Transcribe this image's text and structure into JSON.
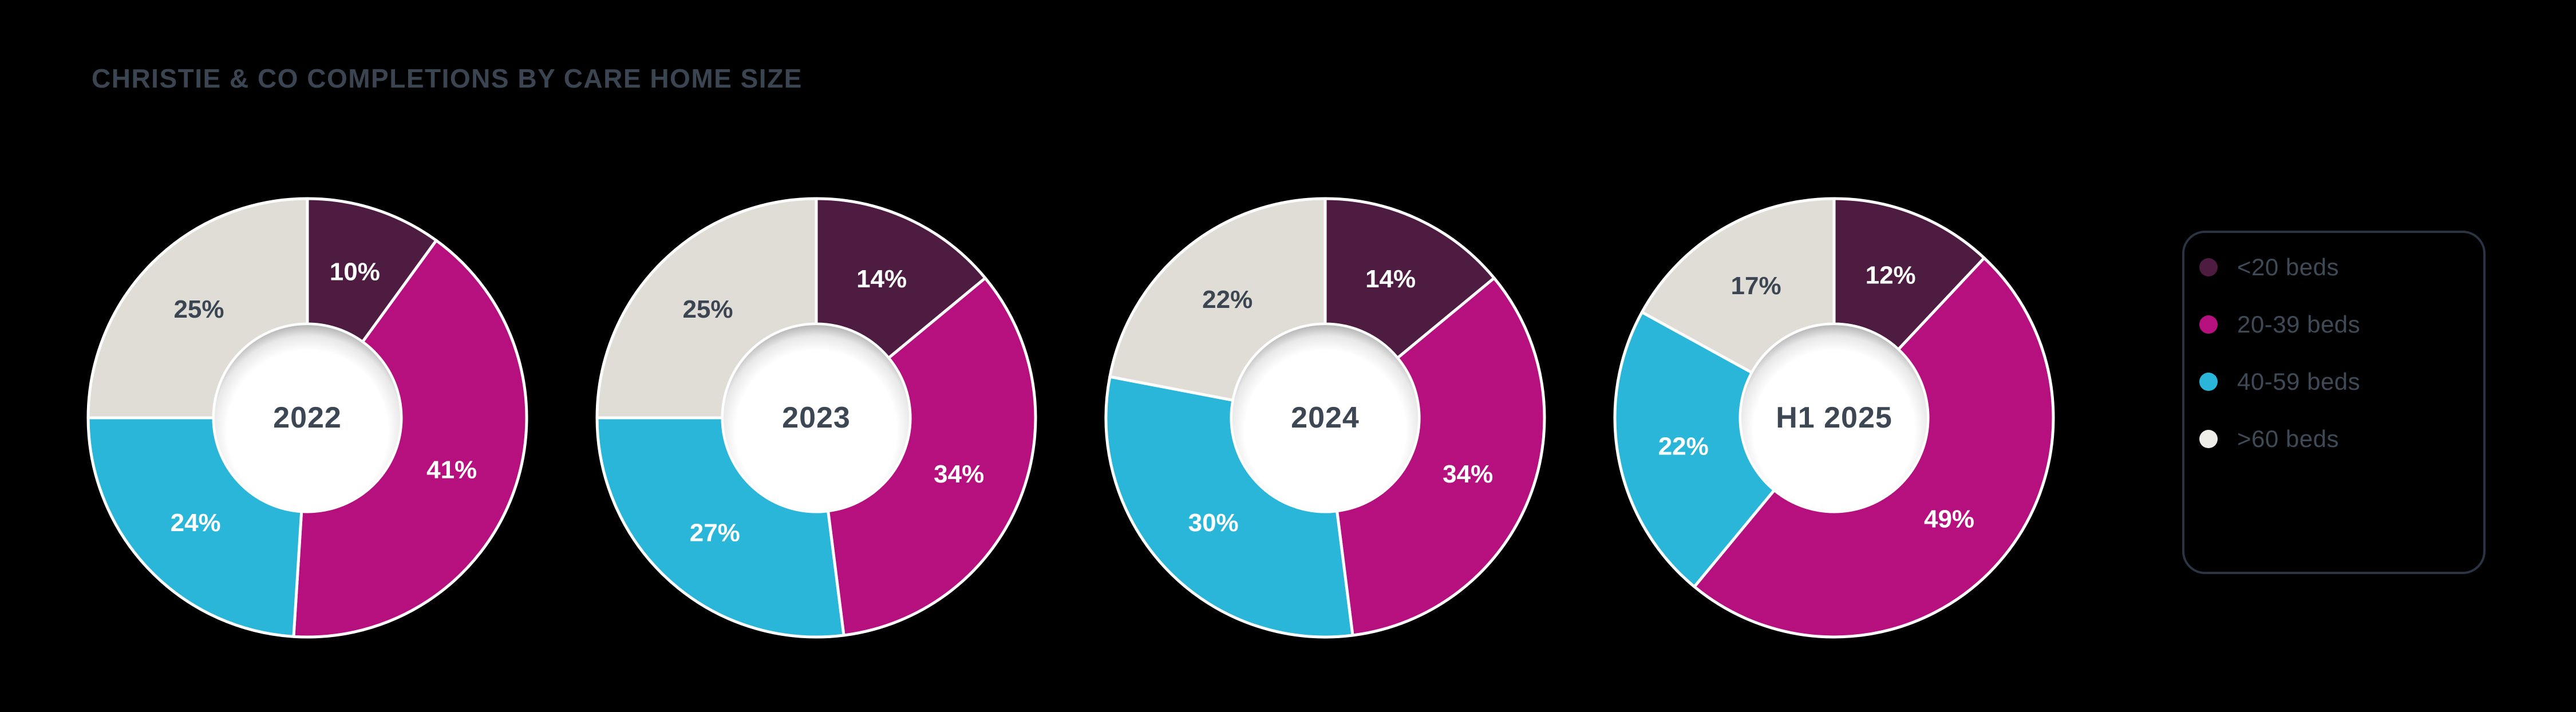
{
  "page": {
    "background_color": "#000000"
  },
  "chart_data": {
    "type": "pie",
    "variant": "donut-multiples",
    "title": "CHRISTIE & CO COMPLETIONS BY CARE HOME SIZE",
    "title_color": "#3b4552",
    "categories": [
      "<20 beds",
      "20-39 beds",
      "40-59 beds",
      ">60 beds"
    ],
    "colors": [
      "#4d1c40",
      "#b6107f",
      "#29b6d8",
      "#dfddd6"
    ],
    "legend_dot_colors": [
      "#4d1c40",
      "#b6107f",
      "#29b6d8",
      "#efede7"
    ],
    "slice_label_colors": [
      "#ffffff",
      "#ffffff",
      "#ffffff",
      "#3c4653"
    ],
    "slice_divider_color": "#ffffff",
    "hole_color": "#ffffff",
    "center_label_color": "#3d4754",
    "value_suffix": "%",
    "start_angle_deg": 0,
    "direction": "clockwise",
    "legend_position": "right",
    "donuts": [
      {
        "center_label": "2022",
        "values": [
          10,
          41,
          24,
          25
        ]
      },
      {
        "center_label": "2023",
        "values": [
          14,
          34,
          27,
          25
        ]
      },
      {
        "center_label": "2024",
        "values": [
          14,
          34,
          30,
          22
        ]
      },
      {
        "center_label": "H1 2025",
        "values": [
          12,
          49,
          22,
          17
        ]
      }
    ]
  }
}
